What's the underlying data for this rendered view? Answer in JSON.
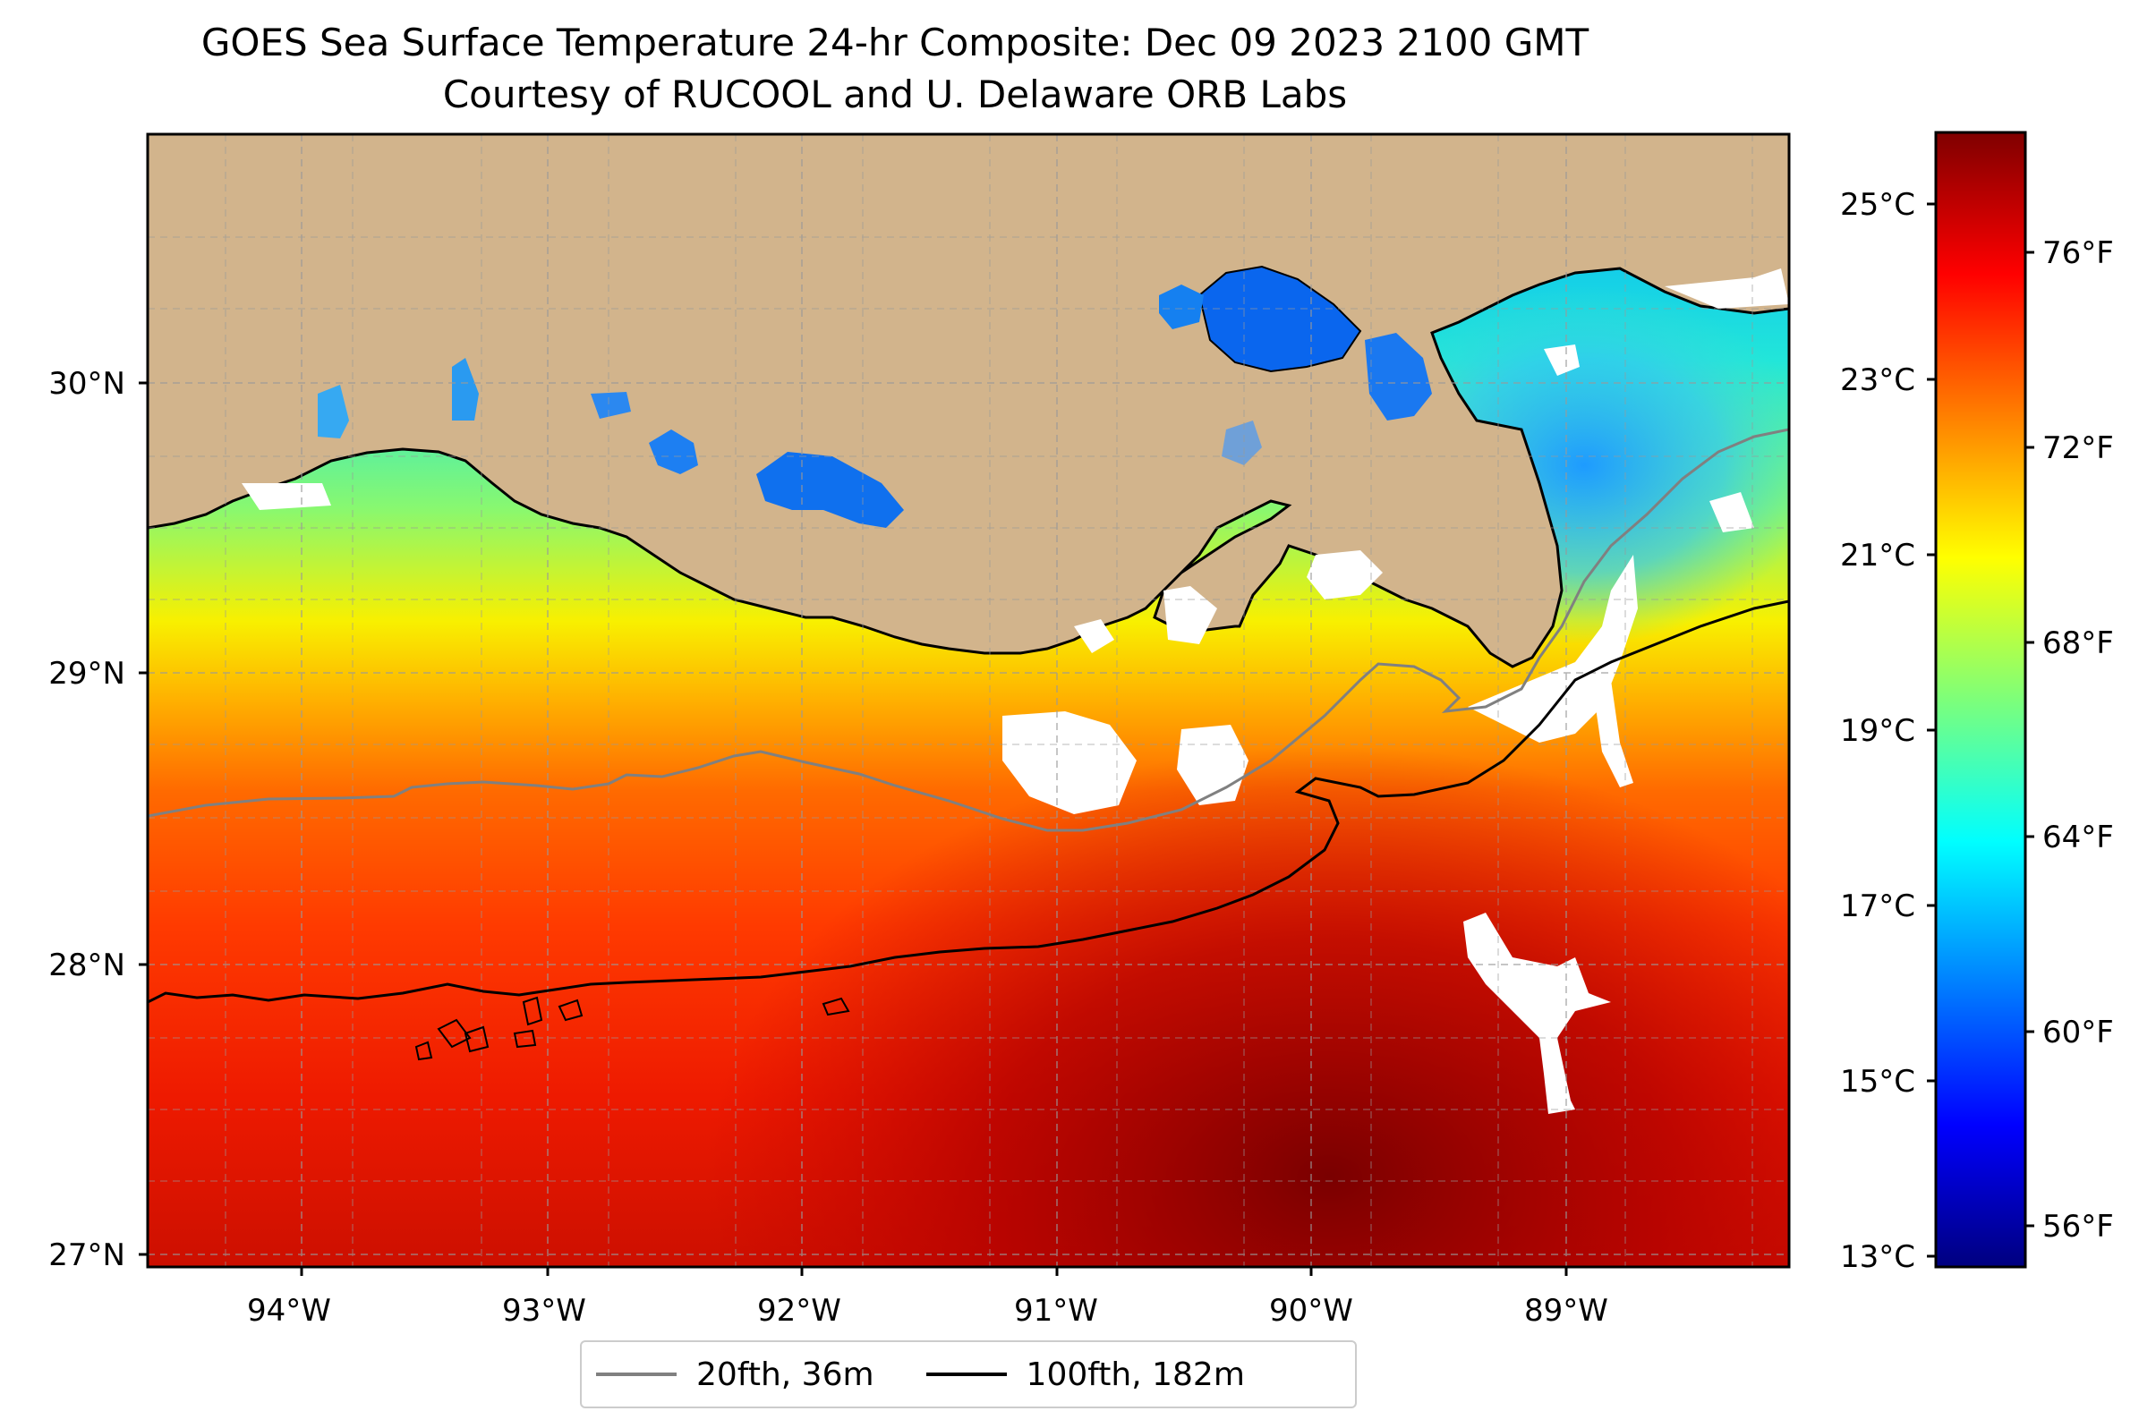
{
  "title": "GOES Sea Surface Temperature 24-hr Composite: Dec 09 2023 2100 GMT",
  "subtitle": "Courtesy of RUCOOL and U. Delaware ORB Labs",
  "map": {
    "lon_range": [
      -94.55,
      -88.2
    ],
    "lat_range": [
      26.95,
      30.85
    ],
    "lat_ticks": [
      {
        "value": 30,
        "label": "30°N"
      },
      {
        "value": 29,
        "label": "29°N"
      },
      {
        "value": 28,
        "label": "28°N"
      },
      {
        "value": 27,
        "label": "27°N"
      }
    ],
    "lon_ticks": [
      {
        "value": -94,
        "label": "94°W"
      },
      {
        "value": -93,
        "label": "93°W"
      },
      {
        "value": -92,
        "label": "92°W"
      },
      {
        "value": -91,
        "label": "91°W"
      },
      {
        "value": -90,
        "label": "90°W"
      },
      {
        "value": -89,
        "label": "89°W"
      }
    ],
    "land_color": "#d2b48c",
    "gridlines": "dashed"
  },
  "colorbar": {
    "colormap": "jet",
    "range_c": [
      12.9,
      25.9
    ],
    "celsius_ticks": [
      {
        "value": 25,
        "label": "25°C"
      },
      {
        "value": 23,
        "label": "23°C"
      },
      {
        "value": 21,
        "label": "21°C"
      },
      {
        "value": 19,
        "label": "19°C"
      },
      {
        "value": 17,
        "label": "17°C"
      },
      {
        "value": 15,
        "label": "15°C"
      },
      {
        "value": 13,
        "label": "13°C"
      }
    ],
    "fahrenheit_ticks": [
      {
        "value": 76,
        "label": "76°F"
      },
      {
        "value": 72,
        "label": "72°F"
      },
      {
        "value": 68,
        "label": "68°F"
      },
      {
        "value": 64,
        "label": "64°F"
      },
      {
        "value": 60,
        "label": "60°F"
      },
      {
        "value": 56,
        "label": "56°F"
      }
    ]
  },
  "legend": [
    {
      "label": "20fth, 36m",
      "color": "#808080"
    },
    {
      "label": "100fth, 182m",
      "color": "#000000"
    }
  ]
}
